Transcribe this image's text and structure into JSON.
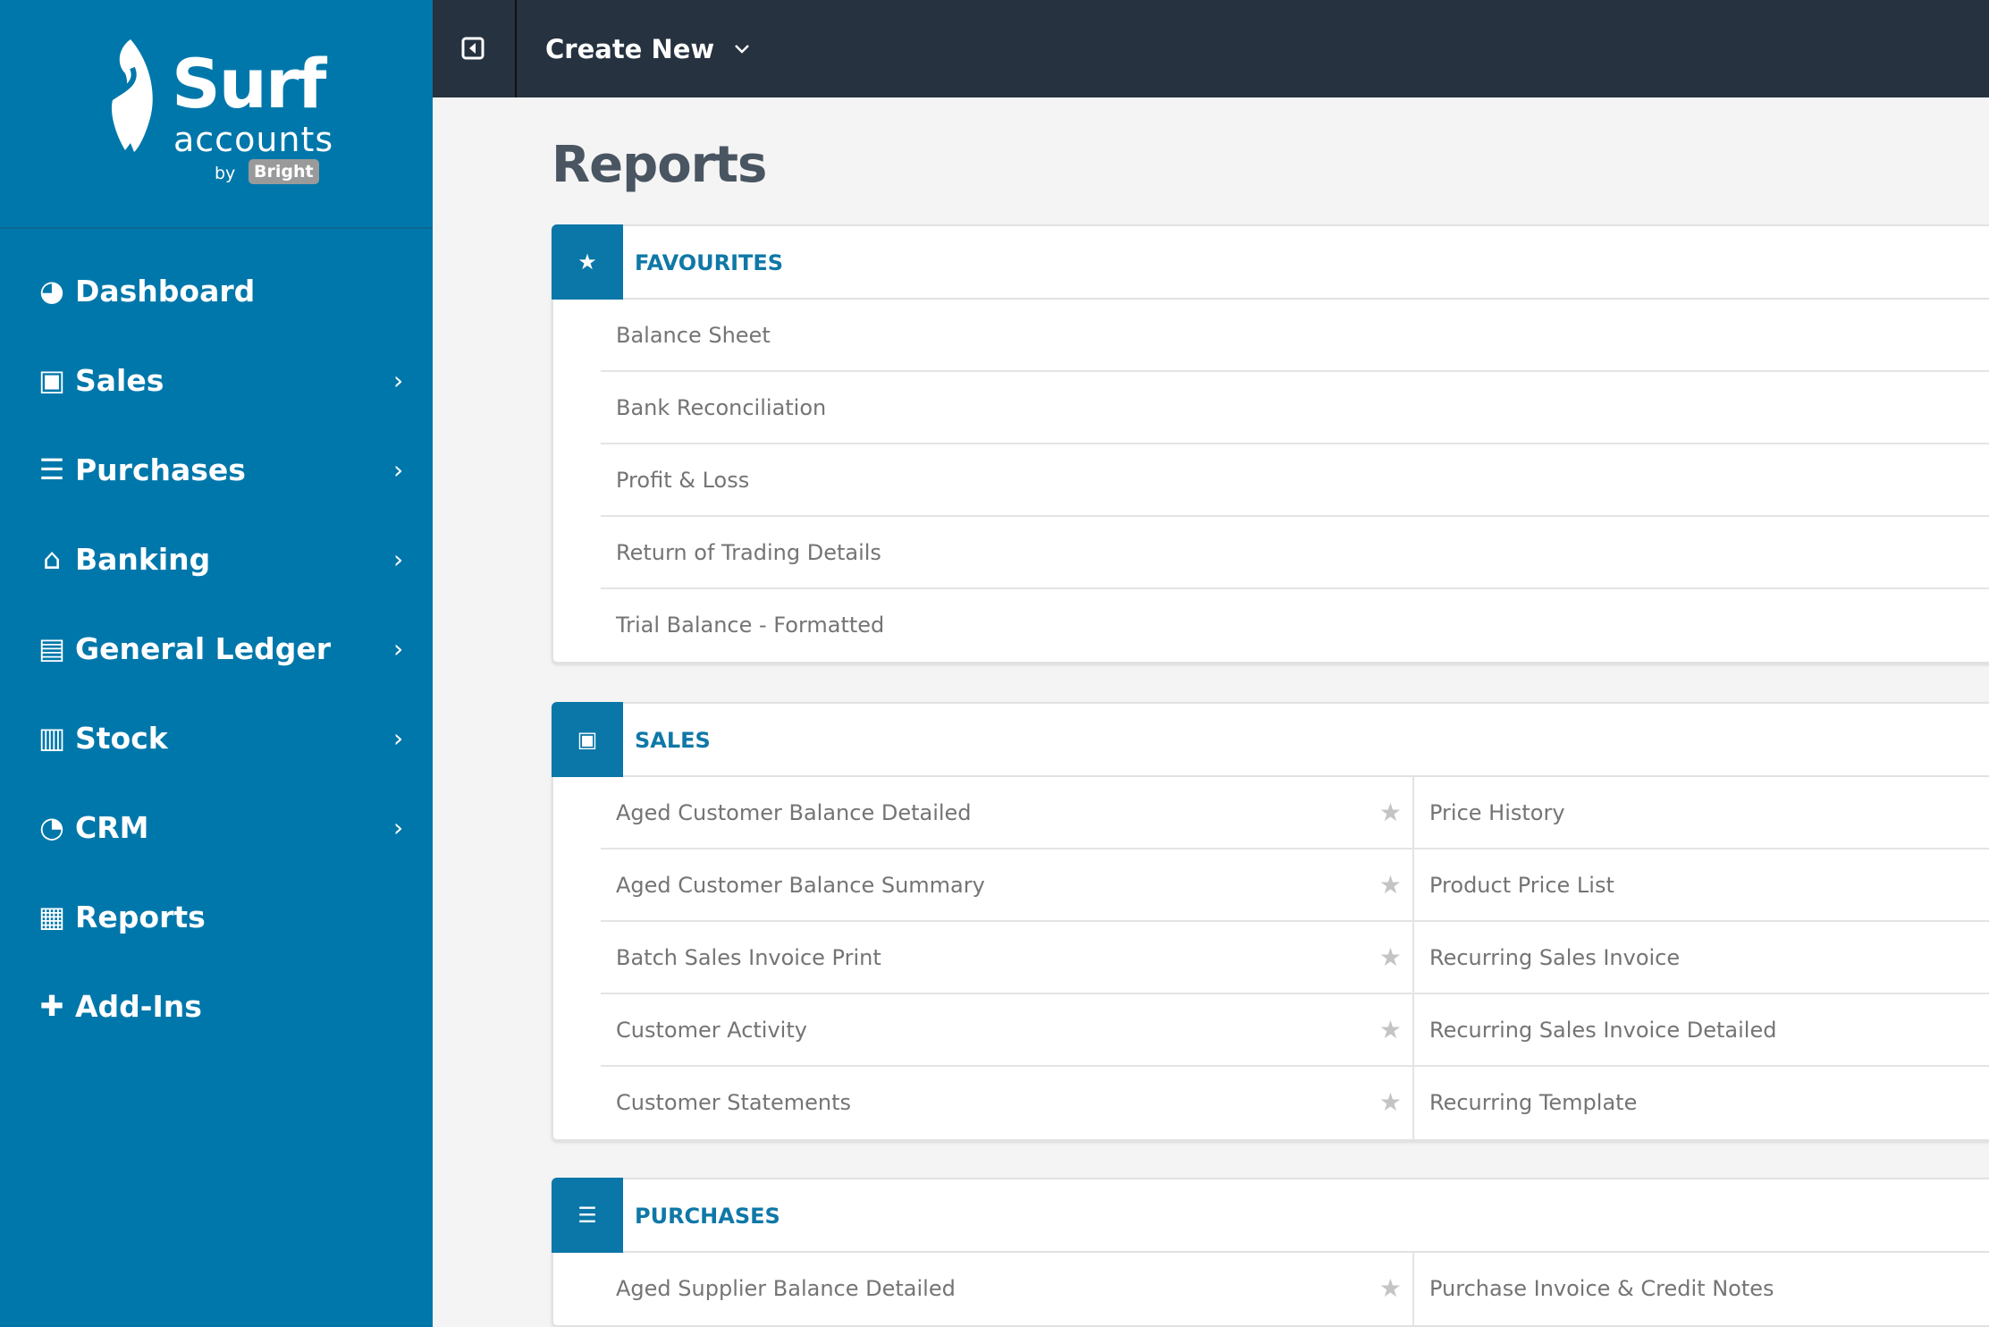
{
  "brand": {
    "name": "Surf",
    "sub": "accounts",
    "by": "by",
    "partner": "Bright"
  },
  "sidebar": {
    "items": [
      {
        "label": "Dashboard",
        "icon": "dashboard-icon",
        "glyph": "◕",
        "chevron": false
      },
      {
        "label": "Sales",
        "icon": "briefcase-icon",
        "glyph": "▣",
        "chevron": true
      },
      {
        "label": "Purchases",
        "icon": "list-icon",
        "glyph": "☰",
        "chevron": true
      },
      {
        "label": "Banking",
        "icon": "bank-icon",
        "glyph": "⌂",
        "chevron": true
      },
      {
        "label": "General Ledger",
        "icon": "document-icon",
        "glyph": "▤",
        "chevron": true
      },
      {
        "label": "Stock",
        "icon": "bar-chart-icon",
        "glyph": "▥",
        "chevron": true
      },
      {
        "label": "CRM",
        "icon": "pie-chart-icon",
        "glyph": "◔",
        "chevron": true
      },
      {
        "label": "Reports",
        "icon": "table-icon",
        "glyph": "▦",
        "chevron": false
      },
      {
        "label": "Add-Ins",
        "icon": "puzzle-icon",
        "glyph": "✚",
        "chevron": false
      }
    ]
  },
  "topbar": {
    "create_label": "Create New"
  },
  "page": {
    "title": "Reports"
  },
  "sections": [
    {
      "id": "favourites",
      "title": "FAVOURITES",
      "icon": "star-icon",
      "glyph": "★",
      "columns": 1,
      "rows": [
        [
          "Balance Sheet"
        ],
        [
          "Bank Reconciliation"
        ],
        [
          "Profit & Loss"
        ],
        [
          "Return of Trading Details"
        ],
        [
          "Trial Balance - Formatted"
        ]
      ]
    },
    {
      "id": "sales",
      "title": "SALES",
      "icon": "briefcase-icon",
      "glyph": "▣",
      "columns": 2,
      "rows": [
        [
          "Aged Customer Balance Detailed",
          "Price History"
        ],
        [
          "Aged Customer Balance Summary",
          "Product Price List"
        ],
        [
          "Batch Sales Invoice Print",
          "Recurring Sales Invoice"
        ],
        [
          "Customer Activity",
          "Recurring Sales Invoice Detailed"
        ],
        [
          "Customer Statements",
          "Recurring Template"
        ]
      ]
    },
    {
      "id": "purchases",
      "title": "PURCHASES",
      "icon": "list-icon",
      "glyph": "☰",
      "columns": 2,
      "rows": [
        [
          "Aged Supplier Balance Detailed",
          "Purchase Invoice & Credit Notes"
        ]
      ]
    }
  ],
  "colors": {
    "sidebar": "#0077aa",
    "topbar": "#26323f",
    "accent": "#0a77a8"
  }
}
